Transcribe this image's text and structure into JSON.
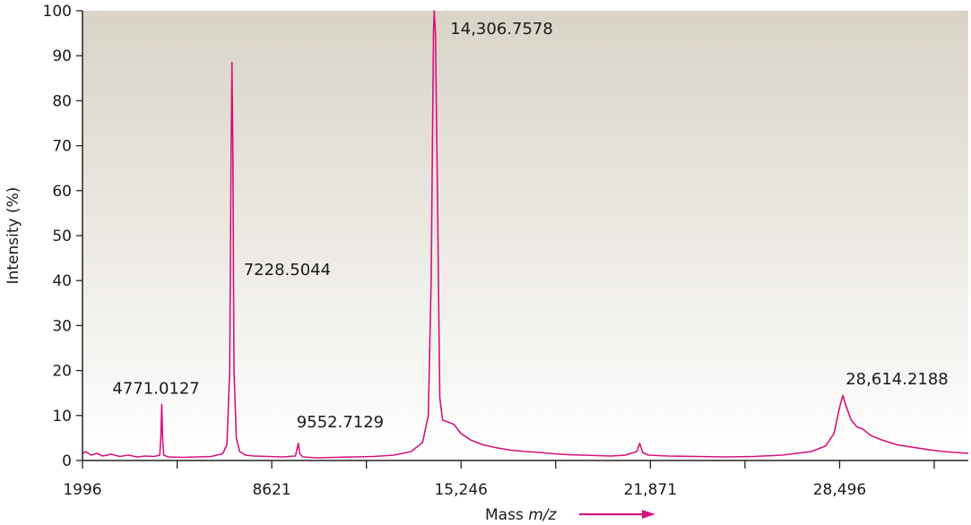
{
  "chart_data": {
    "type": "line",
    "title": "",
    "xlabel_prefix": "Mass ",
    "xlabel_italic": "m/z",
    "ylabel": "Intensity (%)",
    "xlim": [
      1996,
      33000
    ],
    "ylim": [
      0,
      100
    ],
    "x_ticks": [
      1996,
      8621,
      15246,
      21871,
      28496
    ],
    "x_tick_labels": [
      "1996",
      "8621",
      "15,246",
      "21,871",
      "28,496"
    ],
    "y_ticks": [
      0,
      10,
      20,
      30,
      40,
      50,
      60,
      70,
      80,
      90,
      100
    ],
    "y_tick_labels": [
      "0",
      "10",
      "20",
      "30",
      "40",
      "50",
      "60",
      "70",
      "80",
      "90",
      "100"
    ],
    "grid": false,
    "colors": {
      "line": "#d4147f",
      "background_top": "#d9d3c7",
      "background_bottom": "#ffffff",
      "axis": "#222222"
    },
    "peak_labels": [
      {
        "label": "4771.0127",
        "x": 4771.0127,
        "y": 12.5
      },
      {
        "label": "7228.5044",
        "x": 7228.5044,
        "y": 88.5
      },
      {
        "label": "9552.7129",
        "x": 9552.7129,
        "y": 3.8
      },
      {
        "label": "14,306.7578",
        "x": 14306.7578,
        "y": 100
      },
      {
        "label": "28,614.2188",
        "x": 28614.2188,
        "y": 14.5
      }
    ],
    "series": [
      {
        "points": [
          [
            1996,
            1.5
          ],
          [
            2100,
            2.0
          ],
          [
            2300,
            1.2
          ],
          [
            2500,
            1.6
          ],
          [
            2700,
            1.0
          ],
          [
            3000,
            1.4
          ],
          [
            3300,
            0.9
          ],
          [
            3600,
            1.2
          ],
          [
            3900,
            0.8
          ],
          [
            4200,
            1.0
          ],
          [
            4500,
            0.9
          ],
          [
            4700,
            1.2
          ],
          [
            4740,
            5.0
          ],
          [
            4771,
            12.5
          ],
          [
            4800,
            5.0
          ],
          [
            4840,
            1.2
          ],
          [
            5000,
            0.8
          ],
          [
            5500,
            0.7
          ],
          [
            6000,
            0.8
          ],
          [
            6500,
            0.9
          ],
          [
            6900,
            1.5
          ],
          [
            7050,
            3.5
          ],
          [
            7150,
            20
          ],
          [
            7200,
            70
          ],
          [
            7228,
            88.5
          ],
          [
            7260,
            70
          ],
          [
            7300,
            20
          ],
          [
            7380,
            5.0
          ],
          [
            7500,
            2.0
          ],
          [
            7700,
            1.2
          ],
          [
            8000,
            1.0
          ],
          [
            8500,
            0.9
          ],
          [
            9000,
            0.8
          ],
          [
            9450,
            1.0
          ],
          [
            9520,
            3.0
          ],
          [
            9552,
            3.8
          ],
          [
            9600,
            1.5
          ],
          [
            9700,
            0.8
          ],
          [
            10200,
            0.6
          ],
          [
            10800,
            0.7
          ],
          [
            11500,
            0.8
          ],
          [
            12200,
            0.9
          ],
          [
            12900,
            1.2
          ],
          [
            13500,
            2.0
          ],
          [
            13900,
            4.0
          ],
          [
            14100,
            10
          ],
          [
            14200,
            40
          ],
          [
            14280,
            95
          ],
          [
            14306,
            100
          ],
          [
            14350,
            95
          ],
          [
            14420,
            60
          ],
          [
            14500,
            14
          ],
          [
            14600,
            9
          ],
          [
            14800,
            8.5
          ],
          [
            15000,
            8.0
          ],
          [
            15246,
            6.0
          ],
          [
            15600,
            4.5
          ],
          [
            16000,
            3.5
          ],
          [
            16500,
            2.8
          ],
          [
            17000,
            2.3
          ],
          [
            17500,
            2.0
          ],
          [
            18000,
            1.8
          ],
          [
            18500,
            1.5
          ],
          [
            19000,
            1.3
          ],
          [
            19500,
            1.2
          ],
          [
            20000,
            1.1
          ],
          [
            20500,
            1.0
          ],
          [
            21000,
            1.2
          ],
          [
            21400,
            2.0
          ],
          [
            21500,
            3.8
          ],
          [
            21600,
            1.8
          ],
          [
            21800,
            1.2
          ],
          [
            22500,
            1.0
          ],
          [
            23500,
            0.9
          ],
          [
            24500,
            0.8
          ],
          [
            25500,
            0.9
          ],
          [
            26500,
            1.2
          ],
          [
            27500,
            2.0
          ],
          [
            28000,
            3.2
          ],
          [
            28300,
            6.0
          ],
          [
            28500,
            12.0
          ],
          [
            28614,
            14.5
          ],
          [
            28700,
            12.5
          ],
          [
            28900,
            9.0
          ],
          [
            29100,
            7.5
          ],
          [
            29300,
            7.0
          ],
          [
            29600,
            5.5
          ],
          [
            30000,
            4.5
          ],
          [
            30500,
            3.5
          ],
          [
            31000,
            3.0
          ],
          [
            31500,
            2.5
          ],
          [
            32000,
            2.1
          ],
          [
            32500,
            1.8
          ],
          [
            33000,
            1.6
          ]
        ]
      }
    ]
  }
}
